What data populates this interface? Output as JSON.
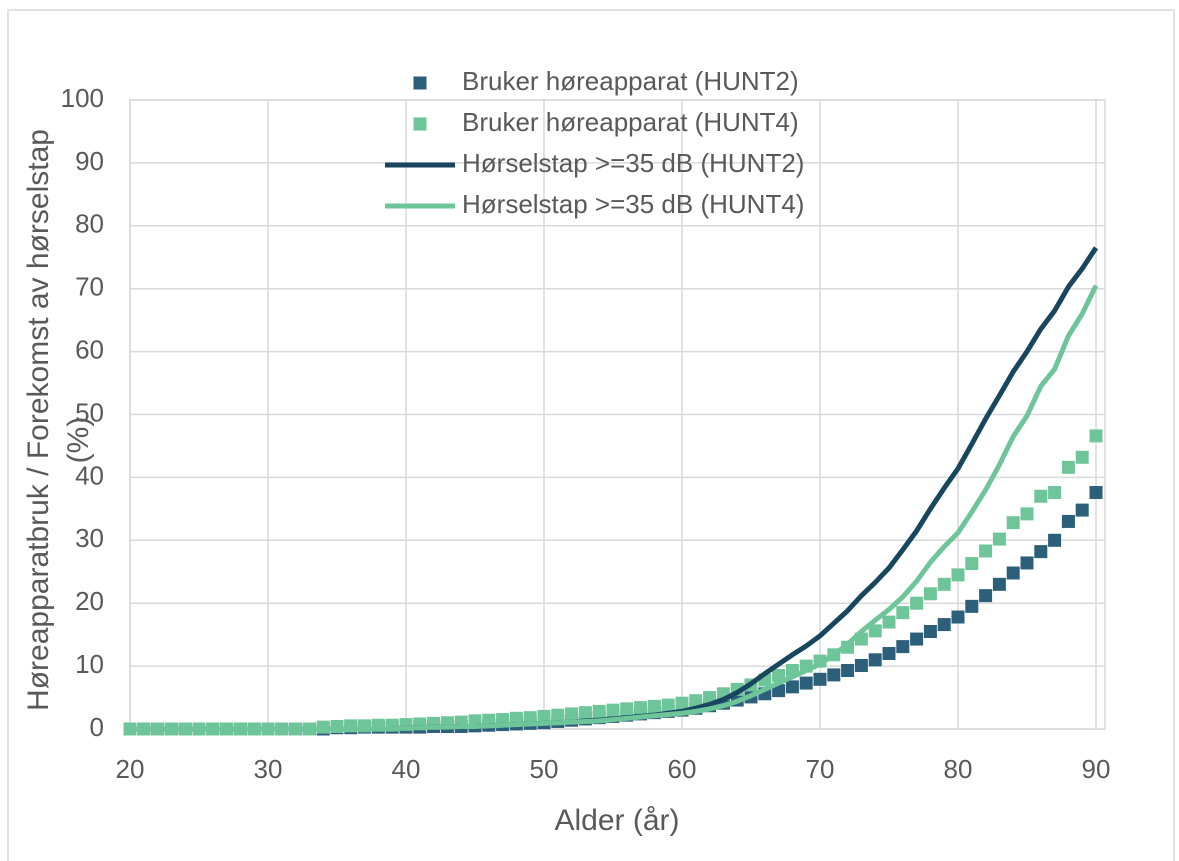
{
  "chart_data": {
    "type": "line",
    "xlabel": "Alder (år)",
    "ylabel": [
      "Høreapparatbruk / Forekomst av hørselstap",
      "(%)"
    ],
    "x": [
      20,
      21,
      22,
      23,
      24,
      25,
      26,
      27,
      28,
      29,
      30,
      31,
      32,
      33,
      34,
      35,
      36,
      37,
      38,
      39,
      40,
      41,
      42,
      43,
      44,
      45,
      46,
      47,
      48,
      49,
      50,
      51,
      52,
      53,
      54,
      55,
      56,
      57,
      58,
      59,
      60,
      61,
      62,
      63,
      64,
      65,
      66,
      67,
      68,
      69,
      70,
      71,
      72,
      73,
      74,
      75,
      76,
      77,
      78,
      79,
      80,
      81,
      82,
      83,
      84,
      85,
      86,
      87,
      88,
      89,
      90
    ],
    "series": [
      {
        "name": "Bruker høreapparat (HUNT2)",
        "color": "#2c5f7a",
        "style": "square",
        "values": [
          0,
          0,
          0,
          0,
          0,
          0,
          0,
          0,
          0,
          0,
          0,
          0,
          0,
          0,
          0,
          0.2,
          0.2,
          0.3,
          0.3,
          0.3,
          0.3,
          0.3,
          0.4,
          0.4,
          0.4,
          0.5,
          0.6,
          0.7,
          0.8,
          0.9,
          1.0,
          1.2,
          1.4,
          1.6,
          1.8,
          2.0,
          2.2,
          2.4,
          2.6,
          2.8,
          3.0,
          3.3,
          3.7,
          4.1,
          4.6,
          5.1,
          5.6,
          6.1,
          6.7,
          7.3,
          7.9,
          8.6,
          9.3,
          10.1,
          11.0,
          12.0,
          13.1,
          14.3,
          15.5,
          16.6,
          17.8,
          19.5,
          21.2,
          23.0,
          24.8,
          26.4,
          28.2,
          30.0,
          33.0,
          34.8,
          37.6
        ]
      },
      {
        "name": "Bruker høreapparat (HUNT4)",
        "color": "#6fc59a",
        "style": "square",
        "values": [
          0,
          0,
          0,
          0,
          0,
          0,
          0,
          0,
          0,
          0,
          0,
          0,
          0,
          0,
          0.3,
          0.4,
          0.5,
          0.5,
          0.6,
          0.6,
          0.7,
          0.8,
          0.9,
          1.0,
          1.1,
          1.3,
          1.4,
          1.5,
          1.7,
          1.8,
          2.0,
          2.2,
          2.4,
          2.6,
          2.8,
          3.0,
          3.2,
          3.4,
          3.6,
          3.8,
          4.1,
          4.5,
          5.0,
          5.6,
          6.3,
          7.0,
          7.8,
          8.5,
          9.3,
          10.0,
          10.8,
          11.8,
          13.0,
          14.3,
          15.6,
          17.0,
          18.5,
          20.0,
          21.5,
          23.0,
          24.5,
          26.3,
          28.3,
          30.2,
          32.8,
          34.2,
          37.0,
          37.6,
          41.6,
          43.2,
          46.6
        ]
      },
      {
        "name": "Hørselstap >=35 dB (HUNT2)",
        "color": "#17465e",
        "style": "line",
        "values": [
          0,
          0,
          0,
          0,
          0,
          0,
          0,
          0,
          0,
          0,
          0,
          0,
          0,
          0,
          0,
          0,
          0,
          0,
          0,
          0,
          0.2,
          0.2,
          0.3,
          0.3,
          0.4,
          0.4,
          0.5,
          0.6,
          0.7,
          0.8,
          0.9,
          1.0,
          1.1,
          1.3,
          1.4,
          1.6,
          1.8,
          2.0,
          2.2,
          2.5,
          2.8,
          3.3,
          3.9,
          4.7,
          5.8,
          7.2,
          8.8,
          10.3,
          11.8,
          13.2,
          14.8,
          16.8,
          18.8,
          21.2,
          23.3,
          25.6,
          28.5,
          31.5,
          35.0,
          38.3,
          41.4,
          45.3,
          49.3,
          53.0,
          56.8,
          60.0,
          63.6,
          66.5,
          70.3,
          73.2,
          76.5
        ]
      },
      {
        "name": "Hørselstap >=35 dB (HUNT4)",
        "color": "#6fc59a",
        "style": "line",
        "values": [
          0,
          0,
          0,
          0,
          0,
          0,
          0,
          0,
          0,
          0,
          0,
          0,
          0,
          0,
          0,
          0,
          0,
          0,
          0,
          0,
          0.2,
          0.2,
          0.3,
          0.3,
          0.4,
          0.4,
          0.5,
          0.6,
          0.7,
          0.8,
          0.9,
          1.0,
          1.1,
          1.2,
          1.3,
          1.5,
          1.7,
          1.9,
          2.1,
          2.3,
          2.5,
          2.8,
          3.2,
          3.7,
          4.4,
          5.3,
          6.3,
          7.3,
          8.3,
          9.3,
          10.3,
          11.8,
          13.5,
          15.5,
          17.3,
          19.0,
          21.0,
          23.5,
          26.5,
          29.0,
          31.2,
          34.5,
          38.0,
          42.0,
          46.5,
          49.8,
          54.5,
          57.2,
          62.5,
          66.0,
          70.5
        ]
      }
    ],
    "xlim": [
      20,
      90
    ],
    "xticks": [
      20,
      30,
      40,
      50,
      60,
      70,
      80,
      90
    ],
    "ylim": [
      0,
      100
    ],
    "yticks": [
      0,
      10,
      20,
      30,
      40,
      50,
      60,
      70,
      80,
      90,
      100
    ],
    "grid": true,
    "legend": "top"
  }
}
